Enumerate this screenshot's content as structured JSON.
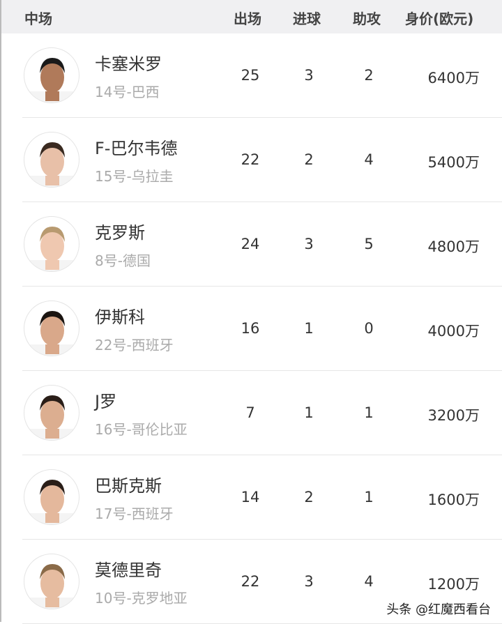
{
  "header": {
    "position": "中场",
    "apps": "出场",
    "goals": "进球",
    "assists": "助攻",
    "value": "身价(欧元)"
  },
  "players": [
    {
      "name": "卡塞米罗",
      "sub": "14号-巴西",
      "apps": "25",
      "goals": "3",
      "assists": "2",
      "value": "6400万",
      "skin": "#b07a5a",
      "hair": "#1a1a1a"
    },
    {
      "name": "F-巴尔韦德",
      "sub": "15号-乌拉圭",
      "apps": "22",
      "goals": "2",
      "assists": "4",
      "value": "5400万",
      "skin": "#e8c0a8",
      "hair": "#3a2a20"
    },
    {
      "name": "克罗斯",
      "sub": "8号-德国",
      "apps": "24",
      "goals": "3",
      "assists": "5",
      "value": "4800万",
      "skin": "#efc8b0",
      "hair": "#b89a70"
    },
    {
      "name": "伊斯科",
      "sub": "22号-西班牙",
      "apps": "16",
      "goals": "1",
      "assists": "0",
      "value": "4000万",
      "skin": "#d9a88a",
      "hair": "#1a1410"
    },
    {
      "name": "J罗",
      "sub": "16号-哥伦比亚",
      "apps": "7",
      "goals": "1",
      "assists": "1",
      "value": "3200万",
      "skin": "#dcae90",
      "hair": "#2a1e18"
    },
    {
      "name": "巴斯克斯",
      "sub": "17号-西班牙",
      "apps": "14",
      "goals": "2",
      "assists": "1",
      "value": "1600万",
      "skin": "#e4b89c",
      "hair": "#2a1e18"
    },
    {
      "name": "莫德里奇",
      "sub": "10号-克罗地亚",
      "apps": "22",
      "goals": "3",
      "assists": "4",
      "value": "1200万",
      "skin": "#e6bca0",
      "hair": "#8a6a48"
    }
  ],
  "watermark": "头条 @红魔西看台"
}
